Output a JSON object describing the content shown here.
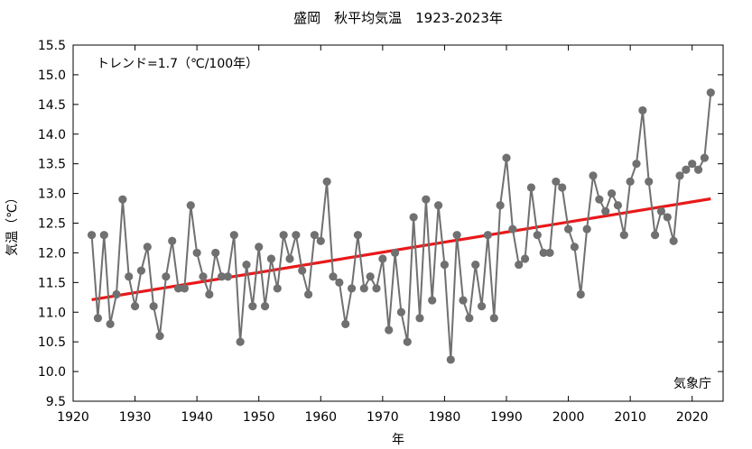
{
  "chart_data": {
    "type": "line",
    "title": "盛岡　秋平均気温　1923-2023年",
    "xlabel": "年",
    "ylabel": "気温（℃）",
    "annotation": "トレンド=1.7（℃/100年）",
    "credit": "気象庁",
    "xlim": [
      1920,
      2025
    ],
    "ylim": [
      9.5,
      15.5
    ],
    "x_ticks": [
      1920,
      1930,
      1940,
      1950,
      1960,
      1970,
      1980,
      1990,
      2000,
      2010,
      2020
    ],
    "y_ticks": [
      9.5,
      10.0,
      10.5,
      11.0,
      11.5,
      12.0,
      12.5,
      13.0,
      13.5,
      14.0,
      14.5,
      15.0,
      15.5
    ],
    "x_tick_labels": [
      "1920",
      "1930",
      "1940",
      "1950",
      "1960",
      "1970",
      "1980",
      "1990",
      "2000",
      "2010",
      "2020"
    ],
    "y_tick_labels": [
      "9.5",
      "10.0",
      "10.5",
      "11.0",
      "11.5",
      "12.0",
      "12.5",
      "13.0",
      "13.5",
      "14.0",
      "14.5",
      "15.0",
      "15.5"
    ],
    "grid": false,
    "series": [
      {
        "color": "#707070",
        "x": [
          1923,
          1924,
          1925,
          1926,
          1927,
          1928,
          1929,
          1930,
          1931,
          1932,
          1933,
          1934,
          1935,
          1936,
          1937,
          1938,
          1939,
          1940,
          1941,
          1942,
          1943,
          1944,
          1945,
          1946,
          1947,
          1948,
          1949,
          1950,
          1951,
          1952,
          1953,
          1954,
          1955,
          1956,
          1957,
          1958,
          1959,
          1960,
          1961,
          1962,
          1963,
          1964,
          1965,
          1966,
          1967,
          1968,
          1969,
          1970,
          1971,
          1972,
          1973,
          1974,
          1975,
          1976,
          1977,
          1978,
          1979,
          1980,
          1981,
          1982,
          1983,
          1984,
          1985,
          1986,
          1987,
          1988,
          1989,
          1990,
          1991,
          1992,
          1993,
          1994,
          1995,
          1996,
          1997,
          1998,
          1999,
          2000,
          2001,
          2002,
          2003,
          2004,
          2005,
          2006,
          2007,
          2008,
          2009,
          2010,
          2011,
          2012,
          2013,
          2014,
          2015,
          2016,
          2017,
          2018,
          2019,
          2020,
          2021,
          2022,
          2023
        ],
        "values": [
          12.3,
          10.9,
          12.3,
          10.8,
          11.3,
          12.9,
          11.6,
          11.1,
          11.7,
          12.1,
          11.1,
          10.6,
          11.6,
          12.2,
          11.4,
          11.4,
          12.8,
          12.0,
          11.6,
          11.3,
          12.0,
          11.6,
          11.6,
          12.3,
          10.5,
          11.8,
          11.1,
          12.1,
          11.1,
          11.9,
          11.4,
          12.3,
          11.9,
          12.3,
          11.7,
          11.3,
          12.3,
          12.2,
          13.2,
          11.6,
          11.5,
          10.8,
          11.4,
          12.3,
          11.4,
          11.6,
          11.4,
          11.9,
          10.7,
          12.0,
          11.0,
          10.5,
          12.6,
          10.9,
          12.9,
          11.2,
          12.8,
          11.8,
          10.2,
          12.3,
          11.2,
          10.9,
          11.8,
          11.1,
          12.3,
          10.9,
          12.8,
          13.6,
          12.4,
          11.8,
          11.9,
          13.1,
          12.3,
          12.0,
          12.0,
          13.2,
          13.1,
          12.4,
          12.1,
          11.3,
          12.4,
          13.3,
          12.9,
          12.7,
          13.0,
          12.8,
          12.3,
          13.2,
          13.5,
          14.4,
          13.2,
          12.3,
          12.7,
          12.6,
          12.2,
          13.3,
          13.4,
          13.5,
          13.4,
          13.6,
          14.7
        ]
      }
    ],
    "trend": {
      "color": "#e8191a",
      "x": [
        1923,
        2023
      ],
      "values": [
        11.21,
        12.91
      ]
    }
  }
}
